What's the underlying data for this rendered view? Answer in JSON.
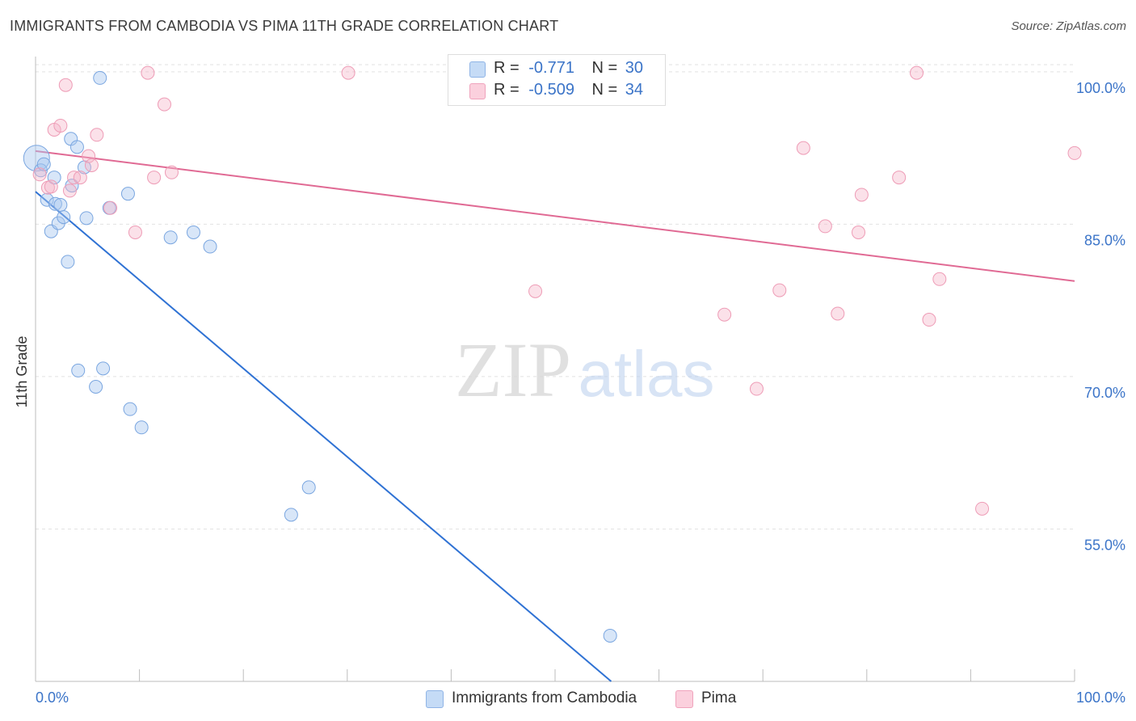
{
  "title": "IMMIGRANTS FROM CAMBODIA VS PIMA 11TH GRADE CORRELATION CHART",
  "source": "Source: ZipAtlas.com",
  "watermark": {
    "zip": "ZIP",
    "atlas": "atlas"
  },
  "stats_legend": [
    {
      "r_label": "R =",
      "r_value": "-0.771",
      "n_label": "N =",
      "n_value": "30",
      "color": "#a9c8ef"
    },
    {
      "r_label": "R =",
      "r_value": "-0.509",
      "n_label": "N =",
      "n_value": "34",
      "color": "#f5b3c7"
    }
  ],
  "chart_data": {
    "type": "scatter",
    "title": "IMMIGRANTS FROM CAMBODIA VS PIMA 11TH GRADE CORRELATION CHART",
    "xlabel": "",
    "ylabel": "11th Grade",
    "xlim": [
      0,
      100
    ],
    "ylim": [
      40,
      101.5
    ],
    "x_tick_labels": [
      "0.0%",
      "100.0%"
    ],
    "y_ticks": [
      55,
      70,
      85,
      100
    ],
    "y_tick_labels": [
      "55.0%",
      "70.0%",
      "85.0%",
      "100.0%"
    ],
    "grid": true,
    "legend_position": "bottom",
    "series": [
      {
        "name": "Immigrants from Cambodia",
        "color": "#a9c8ef",
        "line_color": "#2f72d4",
        "trend": {
          "x": [
            0,
            55.4
          ],
          "y": [
            88.2,
            40
          ]
        },
        "points": [
          {
            "x": 0.1,
            "y": 91.5,
            "large": true
          },
          {
            "x": 0.5,
            "y": 90.3
          },
          {
            "x": 0.8,
            "y": 90.9
          },
          {
            "x": 1.1,
            "y": 87.4
          },
          {
            "x": 1.5,
            "y": 84.3
          },
          {
            "x": 1.8,
            "y": 89.6
          },
          {
            "x": 1.9,
            "y": 87.0
          },
          {
            "x": 2.2,
            "y": 85.1
          },
          {
            "x": 2.4,
            "y": 86.9
          },
          {
            "x": 2.7,
            "y": 85.7
          },
          {
            "x": 3.1,
            "y": 81.3
          },
          {
            "x": 3.4,
            "y": 93.4
          },
          {
            "x": 3.5,
            "y": 88.8
          },
          {
            "x": 4.0,
            "y": 92.6
          },
          {
            "x": 4.1,
            "y": 70.6
          },
          {
            "x": 4.7,
            "y": 90.6
          },
          {
            "x": 4.9,
            "y": 85.6
          },
          {
            "x": 5.8,
            "y": 69.0
          },
          {
            "x": 6.2,
            "y": 99.4
          },
          {
            "x": 6.5,
            "y": 70.8
          },
          {
            "x": 7.1,
            "y": 86.6
          },
          {
            "x": 8.9,
            "y": 88.0
          },
          {
            "x": 9.1,
            "y": 66.8
          },
          {
            "x": 10.2,
            "y": 65.0
          },
          {
            "x": 13.0,
            "y": 83.7
          },
          {
            "x": 15.2,
            "y": 84.2
          },
          {
            "x": 16.8,
            "y": 82.8
          },
          {
            "x": 24.6,
            "y": 56.4
          },
          {
            "x": 26.3,
            "y": 59.1
          },
          {
            "x": 55.3,
            "y": 44.5
          }
        ]
      },
      {
        "name": "Pima",
        "color": "#f5b3c7",
        "line_color": "#e06a94",
        "trend": {
          "x": [
            0,
            100
          ],
          "y": [
            92.2,
            79.4
          ]
        },
        "points": [
          {
            "x": 0.4,
            "y": 89.9
          },
          {
            "x": 1.2,
            "y": 88.6
          },
          {
            "x": 1.8,
            "y": 94.3
          },
          {
            "x": 2.4,
            "y": 94.7
          },
          {
            "x": 2.9,
            "y": 98.7
          },
          {
            "x": 3.3,
            "y": 88.3
          },
          {
            "x": 3.7,
            "y": 89.6
          },
          {
            "x": 4.3,
            "y": 89.6
          },
          {
            "x": 5.1,
            "y": 91.7
          },
          {
            "x": 5.4,
            "y": 90.8
          },
          {
            "x": 5.9,
            "y": 93.8
          },
          {
            "x": 7.2,
            "y": 86.6
          },
          {
            "x": 9.6,
            "y": 84.2
          },
          {
            "x": 10.8,
            "y": 99.9
          },
          {
            "x": 11.4,
            "y": 89.6
          },
          {
            "x": 12.4,
            "y": 96.8
          },
          {
            "x": 13.1,
            "y": 90.1
          },
          {
            "x": 30.1,
            "y": 99.9
          },
          {
            "x": 48.1,
            "y": 78.4
          },
          {
            "x": 66.3,
            "y": 76.1
          },
          {
            "x": 69.4,
            "y": 68.8
          },
          {
            "x": 71.6,
            "y": 78.5
          },
          {
            "x": 73.9,
            "y": 92.5
          },
          {
            "x": 76.0,
            "y": 84.8
          },
          {
            "x": 77.2,
            "y": 76.2
          },
          {
            "x": 79.2,
            "y": 84.2
          },
          {
            "x": 79.5,
            "y": 87.9
          },
          {
            "x": 83.1,
            "y": 89.6
          },
          {
            "x": 84.8,
            "y": 99.9
          },
          {
            "x": 86.0,
            "y": 75.6
          },
          {
            "x": 87.0,
            "y": 79.6
          },
          {
            "x": 91.1,
            "y": 57.0
          },
          {
            "x": 100.0,
            "y": 92.0
          },
          {
            "x": 1.5,
            "y": 88.7
          }
        ]
      }
    ]
  }
}
